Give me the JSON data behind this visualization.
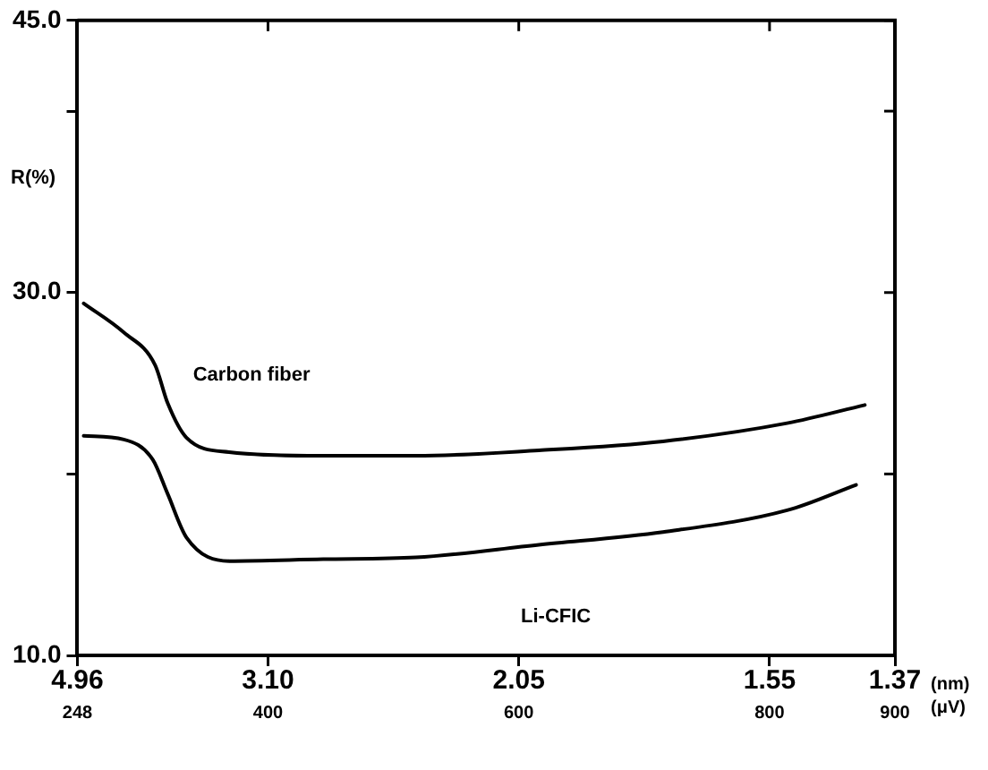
{
  "chart_data": {
    "type": "line",
    "ylabel": "R(%)",
    "xlabel": "(μV)",
    "annotations": [
      "4.96",
      "3.10",
      "2.05",
      "1.55",
      "1.37",
      "(nm)"
    ],
    "xlim": [
      248,
      900
    ],
    "xticks": [
      248,
      400,
      600,
      800,
      900
    ],
    "ylim": [
      10,
      45
    ],
    "yticks": [
      {
        "value": 10,
        "label": "10.0"
      },
      {
        "value": 20,
        "label": null
      },
      {
        "value": 30,
        "label": "30.0"
      },
      {
        "value": 40,
        "label": null
      },
      {
        "value": 45,
        "label": "45.0"
      }
    ],
    "grid": false,
    "legend": false,
    "marker": "none",
    "line_style": "solid",
    "series": [
      {
        "name": "Carbon fiber",
        "color": "#000000",
        "x": [
          253,
          285,
          310,
          320,
          335,
          369,
          444,
          518,
          616,
          715,
          814,
          876
        ],
        "values": [
          29.4,
          27.8,
          26.0,
          23.9,
          22.0,
          21.2,
          21.0,
          21.0,
          21.3,
          21.8,
          22.8,
          23.8
        ]
      },
      {
        "name": "Li-CFIC",
        "color": "#000000",
        "x": [
          253,
          285,
          308,
          320,
          335,
          369,
          444,
          518,
          616,
          715,
          814,
          869
        ],
        "values": [
          22.1,
          21.9,
          20.8,
          18.9,
          16.5,
          15.2,
          15.3,
          15.4,
          16.1,
          16.8,
          18.0,
          19.4
        ]
      }
    ]
  }
}
